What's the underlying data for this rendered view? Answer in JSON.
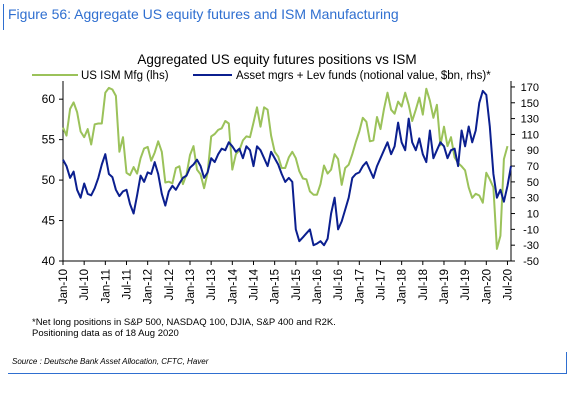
{
  "figure_title": "Figure 56: Aggregate US equity futures and ISM Manufacturing",
  "footnote_lines": [
    "*Net long positions in S&P 500, NASDAQ 100, DJIA, S&P 400 and R2K.",
    "Positioning data as of 18 Aug 2020"
  ],
  "source": "Source : Deutsche Bank Asset Allocation, CFTC, Haver",
  "colors": {
    "ism": "#9bc25a",
    "positions": "#0b1f8f",
    "title_blue": "#2f6fd0"
  },
  "chart_data": {
    "type": "line",
    "title": "Aggregated US equity futures positions vs ISM",
    "legend_placement": "top",
    "grid": false,
    "x_range": [
      "Jan-10",
      "Aug-20"
    ],
    "x_tick_labels": [
      "Jan-10",
      "Jul-10",
      "Jan-11",
      "Jul-11",
      "Jan-12",
      "Jul-12",
      "Jan-13",
      "Jul-13",
      "Jan-14",
      "Jul-14",
      "Jan-15",
      "Jul-15",
      "Jan-16",
      "Jul-16",
      "Jan-17",
      "Jul-17",
      "Jan-18",
      "Jul-18",
      "Jan-19",
      "Jul-19",
      "Jan-20",
      "Jul-20"
    ],
    "y_left": {
      "ticks": [
        40,
        45,
        50,
        55,
        60
      ],
      "range": [
        40,
        62
      ]
    },
    "y_right": {
      "ticks": [
        -50,
        -30,
        -10,
        10,
        30,
        50,
        70,
        90,
        110,
        130,
        150,
        170
      ],
      "range": [
        -50,
        175
      ]
    },
    "series": [
      {
        "name": "US ISM Mfg (lhs)",
        "axis": "left",
        "x": [
          "2010-01",
          "2010-02",
          "2010-03",
          "2010-04",
          "2010-05",
          "2010-06",
          "2010-07",
          "2010-08",
          "2010-09",
          "2010-10",
          "2010-11",
          "2010-12",
          "2011-01",
          "2011-02",
          "2011-03",
          "2011-04",
          "2011-05",
          "2011-06",
          "2011-07",
          "2011-08",
          "2011-09",
          "2011-10",
          "2011-11",
          "2011-12",
          "2012-01",
          "2012-02",
          "2012-03",
          "2012-04",
          "2012-05",
          "2012-06",
          "2012-07",
          "2012-08",
          "2012-09",
          "2012-10",
          "2012-11",
          "2012-12",
          "2013-01",
          "2013-02",
          "2013-03",
          "2013-04",
          "2013-05",
          "2013-06",
          "2013-07",
          "2013-08",
          "2013-09",
          "2013-10",
          "2013-11",
          "2013-12",
          "2014-01",
          "2014-02",
          "2014-03",
          "2014-04",
          "2014-05",
          "2014-06",
          "2014-07",
          "2014-08",
          "2014-09",
          "2014-10",
          "2014-11",
          "2014-12",
          "2015-01",
          "2015-02",
          "2015-03",
          "2015-04",
          "2015-05",
          "2015-06",
          "2015-07",
          "2015-08",
          "2015-09",
          "2015-10",
          "2015-11",
          "2015-12",
          "2016-01",
          "2016-02",
          "2016-03",
          "2016-04",
          "2016-05",
          "2016-06",
          "2016-07",
          "2016-08",
          "2016-09",
          "2016-10",
          "2016-11",
          "2016-12",
          "2017-01",
          "2017-02",
          "2017-03",
          "2017-04",
          "2017-05",
          "2017-06",
          "2017-07",
          "2017-08",
          "2017-09",
          "2017-10",
          "2017-11",
          "2017-12",
          "2018-01",
          "2018-02",
          "2018-03",
          "2018-04",
          "2018-05",
          "2018-06",
          "2018-07",
          "2018-08",
          "2018-09",
          "2018-10",
          "2018-11",
          "2018-12",
          "2019-01",
          "2019-02",
          "2019-03",
          "2019-04",
          "2019-05",
          "2019-06",
          "2019-07",
          "2019-08",
          "2019-09",
          "2019-10",
          "2019-11",
          "2019-12",
          "2020-01",
          "2020-02",
          "2020-03",
          "2020-04",
          "2020-05",
          "2020-06",
          "2020-07"
        ],
        "values": [
          56.5,
          55.5,
          58.8,
          59.6,
          58.4,
          56.0,
          55.3,
          56.3,
          54.4,
          56.9,
          57.0,
          57.0,
          60.8,
          61.4,
          61.2,
          60.4,
          53.5,
          55.3,
          50.9,
          50.6,
          51.6,
          50.8,
          52.7,
          53.9,
          54.1,
          52.4,
          53.4,
          54.8,
          53.5,
          49.7,
          49.8,
          49.6,
          51.5,
          51.7,
          49.5,
          50.7,
          53.1,
          54.2,
          51.3,
          50.7,
          49.0,
          50.9,
          55.4,
          55.7,
          56.2,
          56.4,
          57.3,
          57.0,
          51.3,
          53.2,
          53.7,
          54.9,
          55.4,
          55.3,
          57.1,
          59.0,
          56.6,
          59.0,
          58.7,
          55.5,
          53.5,
          52.9,
          51.5,
          51.5,
          52.8,
          53.5,
          52.7,
          51.1,
          50.2,
          50.1,
          48.6,
          48.2,
          48.2,
          49.5,
          51.8,
          50.8,
          51.3,
          53.2,
          52.6,
          49.4,
          51.5,
          51.9,
          53.2,
          54.7,
          56.0,
          57.7,
          57.2,
          54.8,
          54.9,
          57.8,
          56.3,
          58.8,
          60.8,
          58.7,
          58.2,
          59.7,
          59.1,
          60.8,
          59.3,
          57.3,
          58.7,
          60.2,
          58.1,
          61.3,
          59.8,
          57.7,
          59.3,
          54.3,
          56.6,
          54.2,
          55.3,
          52.8,
          52.1,
          51.7,
          51.2,
          49.1,
          47.8,
          48.3,
          48.1,
          47.2,
          50.9,
          50.1,
          49.1,
          41.5,
          43.1,
          52.6,
          54.2
        ]
      },
      {
        "name": "Asset mgrs + Lev funds (notional value, $bn, rhs)*",
        "axis": "right",
        "x": [
          "2010-01",
          "2010-02",
          "2010-03",
          "2010-04",
          "2010-05",
          "2010-06",
          "2010-07",
          "2010-08",
          "2010-09",
          "2010-10",
          "2010-11",
          "2010-12",
          "2011-01",
          "2011-02",
          "2011-03",
          "2011-04",
          "2011-05",
          "2011-06",
          "2011-07",
          "2011-08",
          "2011-09",
          "2011-10",
          "2011-11",
          "2011-12",
          "2012-01",
          "2012-02",
          "2012-03",
          "2012-04",
          "2012-05",
          "2012-06",
          "2012-07",
          "2012-08",
          "2012-09",
          "2012-10",
          "2012-11",
          "2012-12",
          "2013-01",
          "2013-02",
          "2013-03",
          "2013-04",
          "2013-05",
          "2013-06",
          "2013-07",
          "2013-08",
          "2013-09",
          "2013-10",
          "2013-11",
          "2013-12",
          "2014-01",
          "2014-02",
          "2014-03",
          "2014-04",
          "2014-05",
          "2014-06",
          "2014-07",
          "2014-08",
          "2014-09",
          "2014-10",
          "2014-11",
          "2014-12",
          "2015-01",
          "2015-02",
          "2015-03",
          "2015-04",
          "2015-05",
          "2015-06",
          "2015-07",
          "2015-08",
          "2015-09",
          "2015-10",
          "2015-11",
          "2015-12",
          "2016-01",
          "2016-02",
          "2016-03",
          "2016-04",
          "2016-05",
          "2016-06",
          "2016-07",
          "2016-08",
          "2016-09",
          "2016-10",
          "2016-11",
          "2016-12",
          "2017-01",
          "2017-02",
          "2017-03",
          "2017-04",
          "2017-05",
          "2017-06",
          "2017-07",
          "2017-08",
          "2017-09",
          "2017-10",
          "2017-11",
          "2017-12",
          "2018-01",
          "2018-02",
          "2018-03",
          "2018-04",
          "2018-05",
          "2018-06",
          "2018-07",
          "2018-08",
          "2018-09",
          "2018-10",
          "2018-11",
          "2018-12",
          "2019-01",
          "2019-02",
          "2019-03",
          "2019-04",
          "2019-05",
          "2019-06",
          "2019-07",
          "2019-08",
          "2019-09",
          "2019-10",
          "2019-11",
          "2019-12",
          "2020-01",
          "2020-02",
          "2020-03",
          "2020-04",
          "2020-05",
          "2020-06",
          "2020-07",
          "2020-08"
        ],
        "values": [
          78,
          70,
          55,
          63,
          40,
          30,
          48,
          35,
          33,
          42,
          55,
          72,
          85,
          60,
          56,
          40,
          32,
          38,
          40,
          22,
          10,
          33,
          58,
          50,
          62,
          60,
          75,
          60,
          35,
          20,
          38,
          45,
          40,
          48,
          55,
          58,
          68,
          72,
          78,
          70,
          55,
          62,
          80,
          75,
          85,
          92,
          90,
          100,
          95,
          88,
          92,
          80,
          95,
          90,
          70,
          95,
          90,
          80,
          70,
          88,
          80,
          72,
          60,
          50,
          55,
          50,
          -10,
          -25,
          -20,
          -15,
          -10,
          -30,
          -28,
          -25,
          -30,
          -22,
          10,
          30,
          -10,
          0,
          15,
          30,
          55,
          60,
          62,
          70,
          75,
          65,
          55,
          70,
          80,
          90,
          100,
          85,
          95,
          125,
          100,
          90,
          130,
          100,
          90,
          105,
          85,
          75,
          115,
          80,
          90,
          100,
          95,
          80,
          90,
          92,
          70,
          115,
          95,
          120,
          100,
          115,
          150,
          165,
          160,
          120,
          60,
          30,
          40,
          25,
          45,
          70
        ]
      }
    ]
  }
}
